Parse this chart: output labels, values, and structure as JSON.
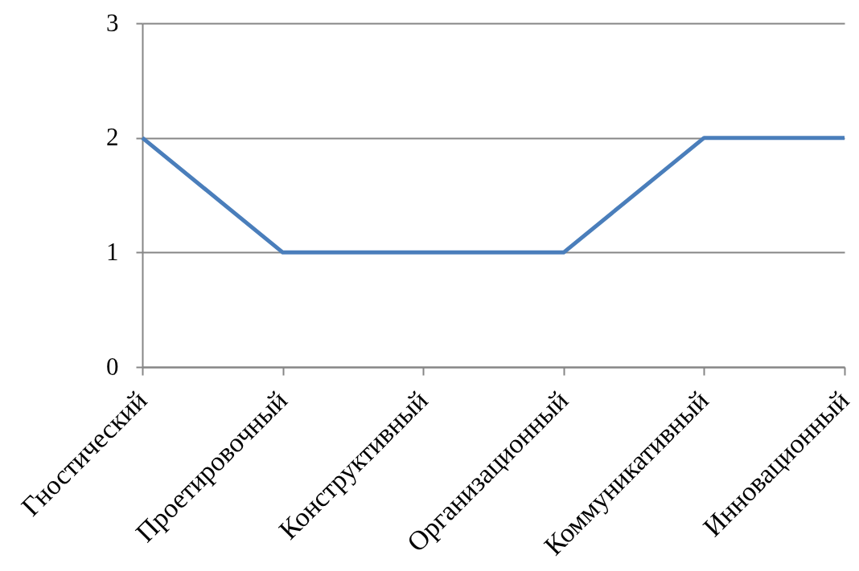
{
  "chart_data": {
    "type": "line",
    "categories": [
      "Гностический",
      "Проетировочный",
      "Конструктивный",
      "Организационный",
      "Коммуникативный",
      "Инновационный"
    ],
    "series": [
      {
        "color": "#4a7ebb",
        "values": [
          2,
          1,
          1,
          1,
          2,
          2
        ]
      }
    ],
    "ylim": [
      0,
      3
    ],
    "yticks": [
      0,
      1,
      2,
      3
    ],
    "grid": "y",
    "marker": "none",
    "line_style": "solid"
  }
}
